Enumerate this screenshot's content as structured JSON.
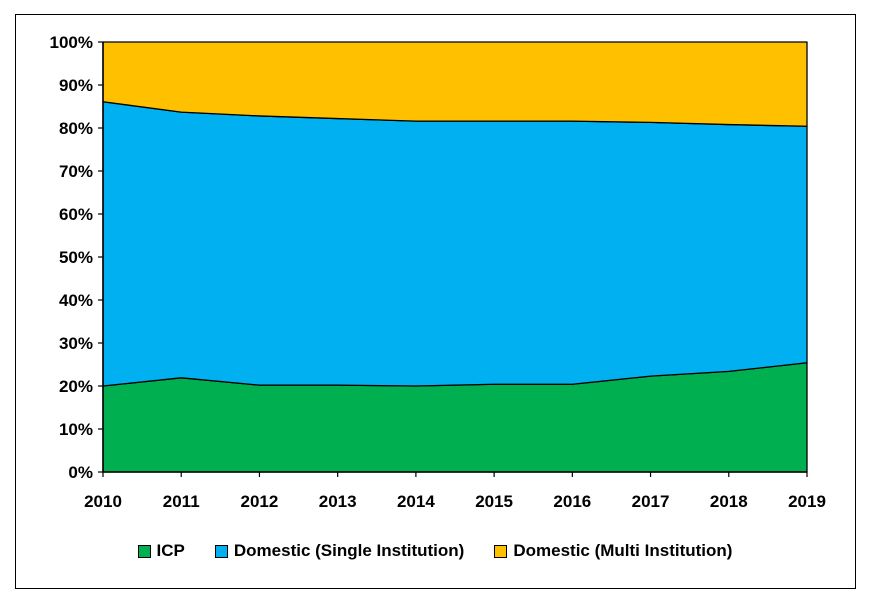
{
  "chart_data": {
    "type": "area",
    "stacked": "percent",
    "title": "",
    "xlabel": "",
    "ylabel": "",
    "ylim": [
      0,
      100
    ],
    "yticks": [
      "0%",
      "10%",
      "20%",
      "30%",
      "40%",
      "50%",
      "60%",
      "70%",
      "80%",
      "90%",
      "100%"
    ],
    "categories": [
      "2010",
      "2011",
      "2012",
      "2013",
      "2014",
      "2015",
      "2016",
      "2017",
      "2018",
      "2019"
    ],
    "legend_position": "bottom",
    "series": [
      {
        "name": "ICP",
        "color": "#00b050",
        "values": [
          20.0,
          21.9,
          20.2,
          20.2,
          20.0,
          20.4,
          20.4,
          22.3,
          23.4,
          25.4
        ]
      },
      {
        "name": "Domestic (Single Institution)",
        "color": "#00b0f0",
        "values": [
          66.1,
          61.8,
          62.6,
          62.0,
          61.6,
          61.2,
          61.2,
          59.0,
          57.4,
          55.0
        ]
      },
      {
        "name": "Domestic (Multi Institution)",
        "color": "#ffc000",
        "values": [
          13.9,
          16.3,
          17.2,
          17.8,
          18.4,
          18.4,
          18.4,
          18.7,
          19.2,
          19.6
        ]
      }
    ]
  }
}
